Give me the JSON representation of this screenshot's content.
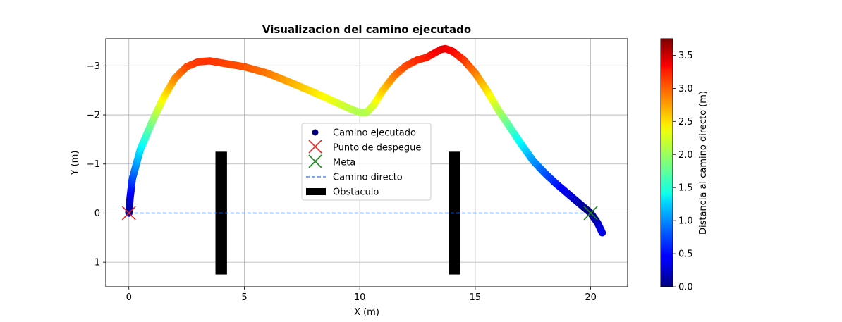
{
  "chart_data": {
    "type": "scatter",
    "title": "Visualizacion del camino ejecutado",
    "xlabel": "X (m)",
    "ylabel": "Y (m)",
    "xlim": [
      -1,
      21.6
    ],
    "ylim": [
      1.5,
      -3.55
    ],
    "y_axis_inverted": true,
    "grid": true,
    "x_ticks": [
      0,
      5,
      10,
      15,
      20
    ],
    "y_ticks": [
      1,
      0,
      -1,
      -2,
      -3
    ],
    "x_tick_labels": [
      "0",
      "5",
      "10",
      "15",
      "20"
    ],
    "y_tick_labels": [
      "1",
      "0",
      "−1",
      "−2",
      "−3"
    ],
    "legend_position": "center",
    "legend": [
      {
        "label": "Camino ejecutado",
        "marker": "dot",
        "color": "#00007f"
      },
      {
        "label": "Punto de despegue",
        "marker": "x",
        "color": "#e8231d"
      },
      {
        "label": "Meta",
        "marker": "x",
        "color": "#1a8a1a"
      },
      {
        "label": "Camino directo",
        "marker": "dashed-line",
        "color": "#5588ee"
      },
      {
        "label": "Obstaculo",
        "marker": "rect",
        "color": "#000000"
      }
    ],
    "series": [
      {
        "name": "Camino ejecutado",
        "color_by": "distance_to_direct_path",
        "points": [
          [
            0,
            0
          ],
          [
            0.05,
            -0.3
          ],
          [
            0.15,
            -0.7
          ],
          [
            0.5,
            -1.3
          ],
          [
            1.0,
            -1.85
          ],
          [
            1.5,
            -2.35
          ],
          [
            2.0,
            -2.75
          ],
          [
            2.5,
            -2.98
          ],
          [
            3.0,
            -3.08
          ],
          [
            3.5,
            -3.1
          ],
          [
            4.0,
            -3.06
          ],
          [
            5.0,
            -2.98
          ],
          [
            6.0,
            -2.85
          ],
          [
            7.0,
            -2.66
          ],
          [
            8.0,
            -2.46
          ],
          [
            9.0,
            -2.25
          ],
          [
            9.6,
            -2.12
          ],
          [
            10.0,
            -2.05
          ],
          [
            10.3,
            -2.05
          ],
          [
            10.6,
            -2.2
          ],
          [
            11.0,
            -2.5
          ],
          [
            11.5,
            -2.8
          ],
          [
            12.0,
            -3.0
          ],
          [
            12.5,
            -3.12
          ],
          [
            12.9,
            -3.17
          ],
          [
            13.2,
            -3.25
          ],
          [
            13.5,
            -3.33
          ],
          [
            13.7,
            -3.35
          ],
          [
            14.0,
            -3.3
          ],
          [
            14.5,
            -3.12
          ],
          [
            15.0,
            -2.85
          ],
          [
            15.5,
            -2.5
          ],
          [
            16.0,
            -2.1
          ],
          [
            16.5,
            -1.75
          ],
          [
            17.0,
            -1.4
          ],
          [
            17.5,
            -1.07
          ],
          [
            18.0,
            -0.82
          ],
          [
            18.5,
            -0.6
          ],
          [
            19.0,
            -0.4
          ],
          [
            19.5,
            -0.2
          ],
          [
            20.0,
            0.0
          ],
          [
            20.3,
            0.2
          ],
          [
            20.5,
            0.4
          ]
        ]
      },
      {
        "name": "Camino directo",
        "points": [
          [
            0,
            0
          ],
          [
            20,
            0
          ]
        ]
      }
    ],
    "start_point": [
      0,
      0
    ],
    "goal_point": [
      20,
      0
    ],
    "obstacles": [
      {
        "x_center": 4.0,
        "width": 0.5,
        "y_min": -1.25,
        "y_max": 1.25
      },
      {
        "x_center": 14.1,
        "width": 0.5,
        "y_min": -1.25,
        "y_max": 1.25
      }
    ],
    "colorbar": {
      "label": "Distancia al camino directo (m)",
      "colormap": "jet",
      "range": [
        0,
        3.75
      ],
      "ticks": [
        0.0,
        0.5,
        1.0,
        1.5,
        2.0,
        2.5,
        3.0,
        3.5
      ],
      "tick_labels": [
        "0.0",
        "0.5",
        "1.0",
        "1.5",
        "2.0",
        "2.5",
        "3.0",
        "3.5"
      ]
    }
  }
}
